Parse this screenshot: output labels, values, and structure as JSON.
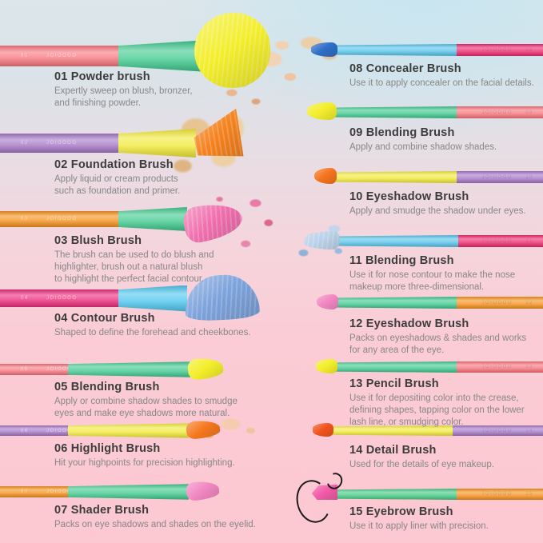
{
  "page": {
    "background": {
      "top_color": "#d9e5ea",
      "top_right_color": "#cde8f2",
      "bottom_color": "#fcc8d2"
    },
    "brand_mark": "JOIOOOO",
    "text_color": "#3c3c3c",
    "description_color": "#878787"
  },
  "brushes": [
    {
      "number": "01",
      "name": "01 Powder brush",
      "description": "Expertly sweep on blush, bronzer,\nand finishing powder.",
      "column": "left",
      "handle_color": "#f8777f",
      "ferrule_color": "#3fc98e",
      "head_color": "#f3ee2b",
      "head_shape": "round-large",
      "accent": "powder-peach"
    },
    {
      "number": "02",
      "name": "02 Foundation Brush",
      "description": "Apply liquid or cream products\nsuch as foundation and primer.",
      "column": "left",
      "handle_color": "#a678c8",
      "ferrule_color": "#f2ea38",
      "head_color": "#f5821e",
      "head_shape": "fan-up",
      "accent": "cream-smear"
    },
    {
      "number": "03",
      "name": "03 Blush Brush",
      "description": "The brush can be used to do blush and\nhighlighter, brush out a natural blush\nto highlight the perfect facial contour.",
      "column": "left",
      "handle_color": "#f6921e",
      "ferrule_color": "#3fc98e",
      "head_color": "#f06fae",
      "head_shape": "dome-right",
      "accent": "powder-pink"
    },
    {
      "number": "04",
      "name": "04 Contour Brush",
      "description": "Shaped to define the forehead and cheekbones.",
      "column": "left",
      "handle_color": "#ee2d7d",
      "ferrule_color": "#4fc6ee",
      "head_color": "#7da3dc",
      "head_shape": "dome-up",
      "accent": null
    },
    {
      "number": "05",
      "name": "05 Blending Brush",
      "description": "Apply or combine shadow shades to smudge\neyes and make eye shadows more natural.",
      "column": "left",
      "handle_color": "#f8777f",
      "ferrule_color": "#3fc98e",
      "head_color": "#f3ee2b",
      "head_shape": "flame-right",
      "accent": null
    },
    {
      "number": "06",
      "name": "06 Highlight Brush",
      "description": "Hit your highpoints for precision highlighting.",
      "column": "left",
      "handle_color": "#a678c8",
      "ferrule_color": "#f2ea38",
      "head_color": "#f5781e",
      "head_shape": "flame-right",
      "accent": "powder-peach-small"
    },
    {
      "number": "07",
      "name": "07 Shader Brush",
      "description": "Packs on eye shadows and shades on the eyelid.",
      "column": "left",
      "handle_color": "#f6921e",
      "ferrule_color": "#3fc98e",
      "head_color": "#f287c3",
      "head_shape": "flame-right",
      "accent": null
    },
    {
      "number": "08",
      "name": "08 Concealer Brush",
      "description": "Use it to apply concealer on the facial details.",
      "column": "right",
      "handle_color": "#ee2a6e",
      "ferrule_color": "#56c3ea",
      "head_color": "#2e6ec6",
      "head_shape": "bullet-left",
      "accent": "cream-small"
    },
    {
      "number": "09",
      "name": "09 Blending Brush",
      "description": "Apply and combine shadow shades.",
      "column": "right",
      "handle_color": "#f8747c",
      "ferrule_color": "#3fc98e",
      "head_color": "#f3ee2b",
      "head_shape": "flame-left",
      "accent": null
    },
    {
      "number": "10",
      "name": "10 Eyeshadow Brush",
      "description": "Apply and smudge the shadow under eyes.",
      "column": "right",
      "handle_color": "#a678c8",
      "ferrule_color": "#f2ea38",
      "head_color": "#f5731e",
      "head_shape": "flame-left",
      "accent": null
    },
    {
      "number": "11",
      "name": "11 Blending Brush",
      "description": "Use it for nose contour to make the nose\nmakeup more three-dimensional.",
      "column": "right",
      "handle_color": "#ee2a6e",
      "ferrule_color": "#56c3ea",
      "head_color": "#b9d2ea",
      "head_shape": "wisp-left",
      "accent": "powder-blue"
    },
    {
      "number": "12",
      "name": "12 Eyeshadow Brush",
      "description": "Packs on eyeshadows & shades and works\nfor any area of the eye.",
      "column": "right",
      "handle_color": "#f6921e",
      "ferrule_color": "#3fc98e",
      "head_color": "#f287c3",
      "head_shape": "flame-left",
      "accent": null
    },
    {
      "number": "13",
      "name": "13 Pencil Brush",
      "description": "Use it for depositing color into the crease,\ndefining shapes, tapping color on the lower\nlash line, or smudging color.",
      "column": "right",
      "handle_color": "#f8747c",
      "ferrule_color": "#3fc98e",
      "head_color": "#f3ee2b",
      "head_shape": "tip-left",
      "accent": null
    },
    {
      "number": "14",
      "name": "14 Detail Brush",
      "description": "Used for the details of eye makeup.",
      "column": "right",
      "handle_color": "#a678c8",
      "ferrule_color": "#f2ea38",
      "head_color": "#f0531e",
      "head_shape": "tip-left",
      "accent": null
    },
    {
      "number": "15",
      "name": "15 Eyebrow Brush",
      "description": "Use it to apply liner with precision.",
      "column": "right",
      "handle_color": "#f6921e",
      "ferrule_color": "#44ca85",
      "head_color": "#f25ba8",
      "head_shape": "angled-left",
      "accent": "liner-swoosh"
    }
  ]
}
